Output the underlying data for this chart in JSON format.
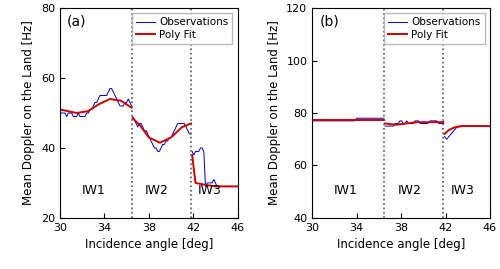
{
  "figsize": [
    5.0,
    2.69
  ],
  "dpi": 100,
  "xlim": [
    30,
    46
  ],
  "xticks": [
    30,
    34,
    38,
    42,
    46
  ],
  "vlines": [
    36.5,
    41.8
  ],
  "iw_labels": [
    [
      "IW1",
      33.0
    ],
    [
      "IW2",
      38.75
    ],
    [
      "IW3",
      43.5
    ]
  ],
  "panel_a": {
    "label": "(a)",
    "ylim": [
      20,
      80
    ],
    "yticks": [
      20,
      40,
      60,
      80
    ],
    "ylabel": "Mean Doppler on the Land [Hz]",
    "xlabel": "Incidence angle [deg]",
    "segments": [
      {
        "obs_x": [
          30.0,
          30.15,
          30.3,
          30.45,
          30.6,
          30.75,
          30.9,
          31.05,
          31.2,
          31.35,
          31.5,
          31.65,
          31.8,
          31.95,
          32.1,
          32.25,
          32.4,
          32.55,
          32.7,
          32.85,
          33.0,
          33.15,
          33.3,
          33.45,
          33.6,
          33.75,
          33.9,
          34.05,
          34.2,
          34.35,
          34.5,
          34.65,
          34.8,
          34.95,
          35.1,
          35.25,
          35.4,
          35.55,
          35.7,
          35.85,
          36.0,
          36.15,
          36.3,
          36.45
        ],
        "obs_y": [
          50,
          50,
          50,
          50,
          49,
          50,
          50,
          50,
          49,
          49,
          49,
          50,
          49,
          49,
          49,
          49,
          50,
          50,
          51,
          51,
          52,
          53,
          53,
          54,
          55,
          55,
          55,
          55,
          55,
          56,
          57,
          57,
          56,
          55,
          54,
          53,
          52,
          52,
          52,
          53,
          53,
          54,
          53,
          52
        ],
        "fit_x": [
          30.0,
          31.5,
          32.5,
          33.5,
          34.5,
          35.5,
          36.45
        ],
        "fit_y": [
          51.0,
          50.0,
          50.5,
          52.5,
          54.0,
          53.5,
          51.5
        ]
      },
      {
        "obs_x": [
          36.55,
          36.7,
          36.85,
          37.0,
          37.15,
          37.3,
          37.45,
          37.6,
          37.75,
          37.9,
          38.05,
          38.2,
          38.35,
          38.5,
          38.65,
          38.8,
          38.95,
          39.1,
          39.25,
          39.4,
          39.55,
          39.7,
          39.85,
          40.0,
          40.15,
          40.3,
          40.45,
          40.6,
          40.75,
          40.9,
          41.05,
          41.2,
          41.35,
          41.5,
          41.65,
          41.8
        ],
        "obs_y": [
          49,
          48,
          47,
          46,
          47,
          47,
          46,
          45,
          45,
          44,
          43,
          42,
          41,
          40,
          40,
          39,
          39,
          40,
          41,
          41,
          42,
          42,
          43,
          43,
          44,
          45,
          46,
          47,
          47,
          47,
          47,
          47,
          46,
          45,
          44,
          44
        ],
        "fit_x": [
          36.55,
          37.2,
          38.0,
          39.0,
          40.0,
          41.0,
          41.8
        ],
        "fit_y": [
          48.5,
          46.5,
          43.0,
          41.5,
          43.0,
          46.0,
          47.0
        ]
      },
      {
        "obs_x": [
          41.9,
          42.05,
          42.2,
          42.35,
          42.5,
          42.65,
          42.8,
          42.95,
          43.1,
          43.25,
          43.4,
          43.55,
          43.7,
          43.85,
          44.0,
          44.15,
          44.3,
          44.45,
          44.6,
          44.75,
          44.9,
          45.05,
          45.2,
          45.35,
          45.5,
          45.65,
          45.8,
          45.95,
          46.0
        ],
        "obs_y": [
          39,
          38,
          39,
          39,
          39,
          40,
          40,
          39,
          29,
          30,
          30,
          30,
          30,
          31,
          30,
          29,
          29,
          29,
          29,
          29,
          29,
          29,
          29,
          29,
          29,
          29,
          29,
          29,
          29
        ],
        "fit_x": [
          41.9,
          42.2,
          43.0,
          44.0,
          45.0,
          46.0
        ],
        "fit_y": [
          38.0,
          30.0,
          29.5,
          29.0,
          29.0,
          29.0
        ]
      }
    ]
  },
  "panel_b": {
    "label": "(b)",
    "ylim": [
      40,
      120
    ],
    "yticks": [
      40,
      60,
      80,
      100,
      120
    ],
    "ylabel": "Mean Doppler on the Land [Hz]",
    "xlabel": "Incidence angle [deg]",
    "segments": [
      {
        "obs_x": [
          30.0,
          30.2,
          30.4,
          30.6,
          30.8,
          31.0,
          31.2,
          31.4,
          31.6,
          31.8,
          32.0,
          32.2,
          32.4,
          32.6,
          32.8,
          33.0,
          33.2,
          33.4,
          33.6,
          33.8,
          34.0,
          34.2,
          34.4,
          34.6,
          34.8,
          35.0,
          35.2,
          35.4,
          35.6,
          35.8,
          36.0,
          36.2,
          36.4,
          36.45
        ],
        "obs_y": [
          77,
          77,
          77,
          77,
          77,
          77,
          77,
          77,
          77,
          77,
          77,
          77,
          77,
          77,
          77,
          77,
          77,
          77,
          77,
          77,
          78,
          78,
          78,
          78,
          78,
          78,
          78,
          78,
          78,
          78,
          78,
          78,
          78,
          78
        ],
        "fit_x": [
          30.0,
          32.0,
          34.0,
          36.0,
          36.45
        ],
        "fit_y": [
          77.5,
          77.5,
          77.5,
          77.5,
          77.5
        ]
      },
      {
        "obs_x": [
          36.55,
          36.7,
          36.85,
          37.0,
          37.15,
          37.3,
          37.45,
          37.6,
          37.75,
          37.9,
          38.05,
          38.2,
          38.35,
          38.5,
          38.65,
          38.8,
          38.95,
          39.1,
          39.25,
          39.4,
          39.55,
          39.7,
          39.85,
          40.0,
          40.2,
          40.4,
          40.6,
          40.8,
          41.0,
          41.2,
          41.4,
          41.6,
          41.8
        ],
        "obs_y": [
          75,
          75,
          75,
          75,
          75,
          75,
          76,
          76,
          76,
          77,
          77,
          76,
          76,
          77,
          76,
          76,
          76,
          76,
          77,
          77,
          77,
          76,
          76,
          76,
          76,
          76,
          77,
          77,
          77,
          77,
          76,
          76,
          76
        ],
        "fit_x": [
          36.55,
          37.5,
          38.5,
          39.5,
          40.5,
          41.5,
          41.8
        ],
        "fit_y": [
          76.0,
          75.5,
          76.0,
          76.5,
          76.5,
          76.5,
          76.5
        ]
      },
      {
        "obs_x": [
          41.9,
          42.1,
          42.3,
          42.5,
          42.7,
          42.9,
          43.1,
          43.3,
          43.5,
          43.7,
          43.9,
          44.1,
          44.3,
          44.5,
          44.7,
          44.9,
          45.1,
          45.3,
          45.5,
          45.7,
          45.9,
          46.0
        ],
        "obs_y": [
          71,
          70,
          71,
          72,
          73,
          74,
          75,
          75,
          75,
          75,
          75,
          75,
          75,
          75,
          75,
          75,
          75,
          75,
          75,
          75,
          75,
          75
        ],
        "fit_x": [
          41.9,
          42.3,
          42.8,
          43.5,
          44.5,
          46.0
        ],
        "fit_y": [
          72.0,
          73.5,
          74.5,
          75.0,
          75.0,
          75.0
        ]
      }
    ]
  },
  "obs_color": "#0000CC",
  "fit_color": "#CC0000",
  "obs_lw": 0.7,
  "fit_lw": 1.4,
  "vline_color": "#555555",
  "vline_style": ":",
  "vline_lw": 1.2,
  "iw_fontsize": 9,
  "legend_fontsize": 7.5,
  "label_fontsize": 8.5,
  "tick_fontsize": 8,
  "panel_label_fontsize": 10
}
